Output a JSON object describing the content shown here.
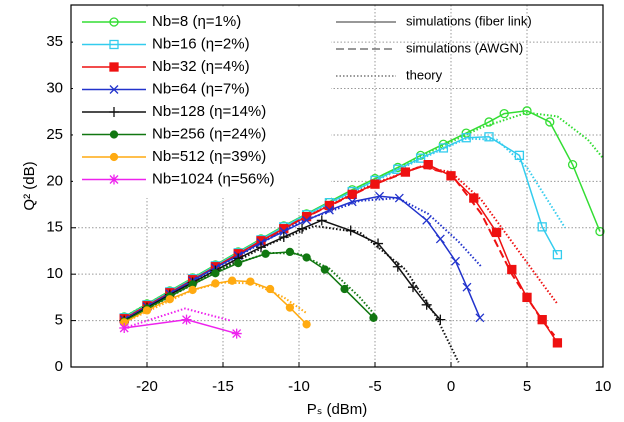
{
  "chart_data": {
    "type": "line",
    "xlabel": "Pₛ (dBm)",
    "ylabel": "Q² (dB)",
    "xlim": [
      -25,
      10
    ],
    "xticks": [
      -20,
      -15,
      -10,
      -5,
      0,
      5,
      10
    ],
    "ylim": [
      0,
      39
    ],
    "yticks": [
      0,
      5,
      10,
      15,
      20,
      25,
      30,
      35
    ],
    "grid": true,
    "line_styles": [
      {
        "name": "simulations (fiber link)",
        "dash": "solid"
      },
      {
        "name": "simulations (AWGN)",
        "dash": "dashed"
      },
      {
        "name": "theory",
        "dash": "dotted"
      }
    ],
    "series": [
      {
        "name": "Nb=8 (η=1%)",
        "color": "#33dd33",
        "marker": "circle-open",
        "x": [
          -21.5,
          -20,
          -18.5,
          -17,
          -15.5,
          -14,
          -12.5,
          -11,
          -9.5,
          -8,
          -6.5,
          -5,
          -3.5,
          -2,
          -0.5,
          1,
          2.5,
          3.5,
          5,
          6.5,
          8,
          9.8
        ],
        "values": [
          5.4,
          6.8,
          8.2,
          9.6,
          11,
          12.4,
          13.8,
          15.2,
          16.5,
          17.8,
          19.1,
          20.3,
          21.5,
          22.8,
          24,
          25.2,
          26.4,
          27.3,
          27.6,
          26.4,
          21.8,
          14.6
        ],
        "theory_x": [
          -21.5,
          -10,
          -2,
          2,
          5,
          7,
          9,
          10
        ],
        "theory_values": [
          5.4,
          16,
          22.7,
          25.8,
          27.4,
          27,
          24.5,
          22.5
        ]
      },
      {
        "name": "Nb=16 (η=2%)",
        "color": "#33ccee",
        "marker": "square-open",
        "x": [
          -21.5,
          -20,
          -18.5,
          -17,
          -15.5,
          -14,
          -12.5,
          -11,
          -9.5,
          -8,
          -6.5,
          -5,
          -3.5,
          -2,
          -0.5,
          1,
          2.5,
          4.5,
          6,
          7
        ],
        "values": [
          5.3,
          6.7,
          8.1,
          9.5,
          10.9,
          12.3,
          13.7,
          15.1,
          16.4,
          17.7,
          18.9,
          20.1,
          21.3,
          22.5,
          23.6,
          24.7,
          24.8,
          22.8,
          15.1,
          12.1
        ],
        "theory_x": [
          -21.5,
          -10,
          -2,
          1,
          3,
          5,
          7.5
        ],
        "theory_values": [
          5.3,
          16,
          22.4,
          24.6,
          24.5,
          21.5,
          15
        ]
      },
      {
        "name": "Nb=32 (η=4%)",
        "color": "#ee1111",
        "marker": "square",
        "x": [
          -21.5,
          -20,
          -18.5,
          -17,
          -15.5,
          -14,
          -12.5,
          -11,
          -9.5,
          -8,
          -6.5,
          -5,
          -3,
          -1.5,
          0,
          1.5,
          3,
          4,
          5,
          6,
          7
        ],
        "values": [
          5.2,
          6.6,
          8,
          9.4,
          10.8,
          12.2,
          13.6,
          14.9,
          16.2,
          17.4,
          18.6,
          19.7,
          21,
          21.8,
          20.6,
          18.2,
          14.5,
          10.5,
          7.5,
          5.1,
          2.6
        ],
        "awgn_x": [
          -21.5,
          -10,
          -5,
          -2,
          0,
          2,
          4,
          6,
          6.8
        ],
        "awgn_values": [
          5.2,
          15.8,
          19.7,
          21.6,
          20.8,
          16.5,
          10,
          5,
          3.4
        ],
        "theory_x": [
          -21.5,
          -10,
          -5,
          -2,
          0,
          2,
          4,
          6,
          7
        ],
        "theory_values": [
          5.2,
          15.8,
          19.8,
          21.6,
          21,
          18,
          13.5,
          9,
          6.8
        ]
      },
      {
        "name": "Nb=64 (η=7%)",
        "color": "#2233cc",
        "marker": "x",
        "x": [
          -21.5,
          -20,
          -18.5,
          -17,
          -15.5,
          -14,
          -12.5,
          -11,
          -9.5,
          -8,
          -6.5,
          -4.7,
          -3.4,
          -1.6,
          -0.7,
          0.3,
          1.05,
          1.9
        ],
        "values": [
          5.1,
          6.5,
          7.9,
          9.3,
          10.7,
          12,
          13.4,
          14.6,
          15.8,
          16.9,
          17.8,
          18.4,
          18.2,
          15.8,
          13.8,
          11.4,
          8.6,
          5.3
        ],
        "theory_x": [
          -21.5,
          -10,
          -6,
          -3.5,
          -1.5,
          0.5,
          2
        ],
        "theory_values": [
          5.1,
          15.6,
          17.9,
          18.2,
          16.5,
          13.5,
          10.8
        ]
      },
      {
        "name": "Nb=128 (η=14%)",
        "color": "#111111",
        "marker": "plus",
        "x": [
          -21.5,
          -20,
          -18.5,
          -17,
          -15.5,
          -14,
          -12.5,
          -11,
          -9.8,
          -8.5,
          -6.6,
          -4.8,
          -3.5,
          -2.5,
          -1.6,
          -0.7
        ],
        "values": [
          5,
          6.4,
          7.8,
          9.1,
          10.4,
          11.7,
          12.9,
          14,
          14.9,
          15.8,
          14.7,
          13.3,
          10.8,
          8.6,
          6.7,
          5.1
        ],
        "theory_x": [
          -21.5,
          -12,
          -9,
          -6,
          -3,
          -1,
          0.5
        ],
        "theory_values": [
          5,
          13.2,
          15.2,
          14.5,
          10.5,
          5.5,
          0.5
        ]
      },
      {
        "name": "Nb=256 (η=24%)",
        "color": "#117711",
        "marker": "circle",
        "x": [
          -21.5,
          -20,
          -18.5,
          -17,
          -15.5,
          -14,
          -12.2,
          -10.6,
          -9.5,
          -8.3,
          -7,
          -5.1
        ],
        "values": [
          4.9,
          6.3,
          7.6,
          8.9,
          10.1,
          11.2,
          12.2,
          12.4,
          11.8,
          10.5,
          8.4,
          5.3
        ],
        "theory_x": [
          -21.5,
          -15,
          -12,
          -10,
          -8,
          -6,
          -5
        ],
        "theory_values": [
          4.9,
          10.7,
          12.3,
          12.2,
          10.6,
          7.5,
          5.6
        ]
      },
      {
        "name": "Nb=512 (η=39%)",
        "color": "#ffaa11",
        "marker": "circle",
        "x": [
          -21.5,
          -20,
          -18.5,
          -17,
          -15.5,
          -14.4,
          -13.2,
          -11.9,
          -10.6,
          -9.5
        ],
        "values": [
          4.8,
          6.1,
          7.3,
          8.3,
          9,
          9.3,
          9.2,
          8.4,
          6.4,
          4.6
        ],
        "theory_x": [
          -21.5,
          -17,
          -15,
          -13,
          -11,
          -9.5
        ],
        "theory_values": [
          4.8,
          8.3,
          9.1,
          9,
          7.5,
          5.8
        ]
      },
      {
        "name": "Nb=1024 (η=56%)",
        "color": "#ee22ee",
        "marker": "star",
        "x": [
          -21.5,
          -17.4,
          -14.1
        ],
        "values": [
          4.2,
          5.1,
          3.6
        ],
        "theory_x": [
          -21.5,
          -17.5,
          -14.5
        ],
        "theory_values": [
          4.2,
          6.3,
          5
        ]
      }
    ]
  }
}
